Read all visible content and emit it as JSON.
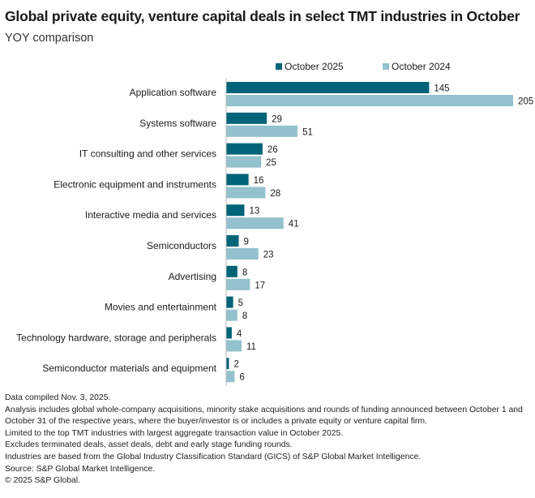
{
  "title": "Global private equity, venture capital deals in select TMT industries in October",
  "subtitle": "YOY comparison",
  "colors": {
    "series_2025": "#006478",
    "series_2024": "#93c1cd"
  },
  "chart_data": {
    "type": "bar",
    "orientation": "horizontal",
    "categories": [
      "Application software",
      "Systems software",
      "IT consulting and other services",
      "Electronic equipment and instruments",
      "Interactive media and services",
      "Semiconductors",
      "Advertising",
      "Movies and entertainment",
      "Technology hardware, storage and peripherals",
      "Semiconductor materials and equipment"
    ],
    "series": [
      {
        "name": "October 2025",
        "values": [
          145,
          29,
          26,
          16,
          13,
          9,
          8,
          5,
          4,
          2
        ]
      },
      {
        "name": "October 2024",
        "values": [
          205,
          51,
          25,
          28,
          41,
          23,
          17,
          8,
          11,
          6
        ]
      }
    ],
    "xlim": [
      0,
      205
    ],
    "grid": false,
    "legend": "top"
  },
  "notes": [
    "Data compiled Nov. 3, 2025.",
    "Analysis includes global whole-company acquisitions, minority stake acquisitions and rounds of funding announced between October 1 and October 31 of the respective years, where the buyer/investor is or includes a private equity or venture capital firm.",
    "Limited to the top TMT industries with largest aggregate transaction value in October 2025.",
    "Excludes terminated deals, asset deals, debt and early stage funding rounds.",
    "Industries are based from the Global Industry Classification Standard (GICS) of S&P Global Market Intelligence.",
    "Source: S&P Global Market Intelligence.",
    "© 2025 S&P Global."
  ]
}
